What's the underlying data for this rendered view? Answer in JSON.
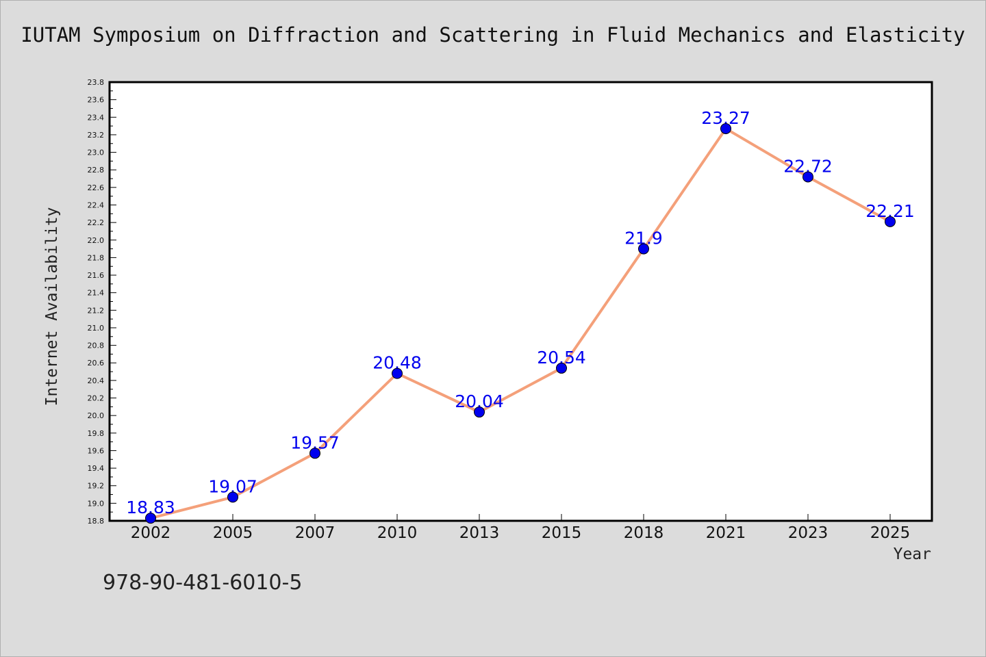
{
  "page": {
    "title": "IUTAM Symposium on Diffraction and Scattering in Fluid Mechanics and Elasticity",
    "footer_text": "978-90-481-6010-5"
  },
  "colors": {
    "background": "#dcdcdc",
    "plot_background": "#ffffff",
    "line": "#f4a07a",
    "marker": "#0000ee",
    "data_label": "#0000ee"
  },
  "chart_data": {
    "type": "line",
    "title": "IUTAM Symposium on Diffraction and Scattering in Fluid Mechanics and Elasticity",
    "xlabel": "Year",
    "ylabel": "Internet Availability",
    "categories": [
      "2002",
      "2005",
      "2007",
      "2010",
      "2013",
      "2015",
      "2018",
      "2021",
      "2023",
      "2025"
    ],
    "series": [
      {
        "values": [
          18.83,
          19.07,
          19.57,
          20.48,
          20.04,
          20.54,
          21.9,
          23.27,
          22.72,
          22.21
        ],
        "data_labels": [
          "18.83",
          "19.07",
          "19.57",
          "20.48",
          "20.04",
          "20.54",
          "21.9",
          "23.27",
          "22.72",
          "22.21"
        ]
      }
    ],
    "ylim": [
      18.8,
      23.8
    ],
    "yticks": [
      "18.8",
      "19.0",
      "19.2",
      "19.4",
      "19.6",
      "19.8",
      "20.0",
      "20.2",
      "20.4",
      "20.6",
      "20.8",
      "21.0",
      "21.2",
      "21.4",
      "21.6",
      "21.8",
      "22.0",
      "22.2",
      "22.4",
      "22.6",
      "22.8",
      "23.0",
      "23.2",
      "23.4",
      "23.6",
      "23.8"
    ],
    "grid": false,
    "legend": "none"
  }
}
